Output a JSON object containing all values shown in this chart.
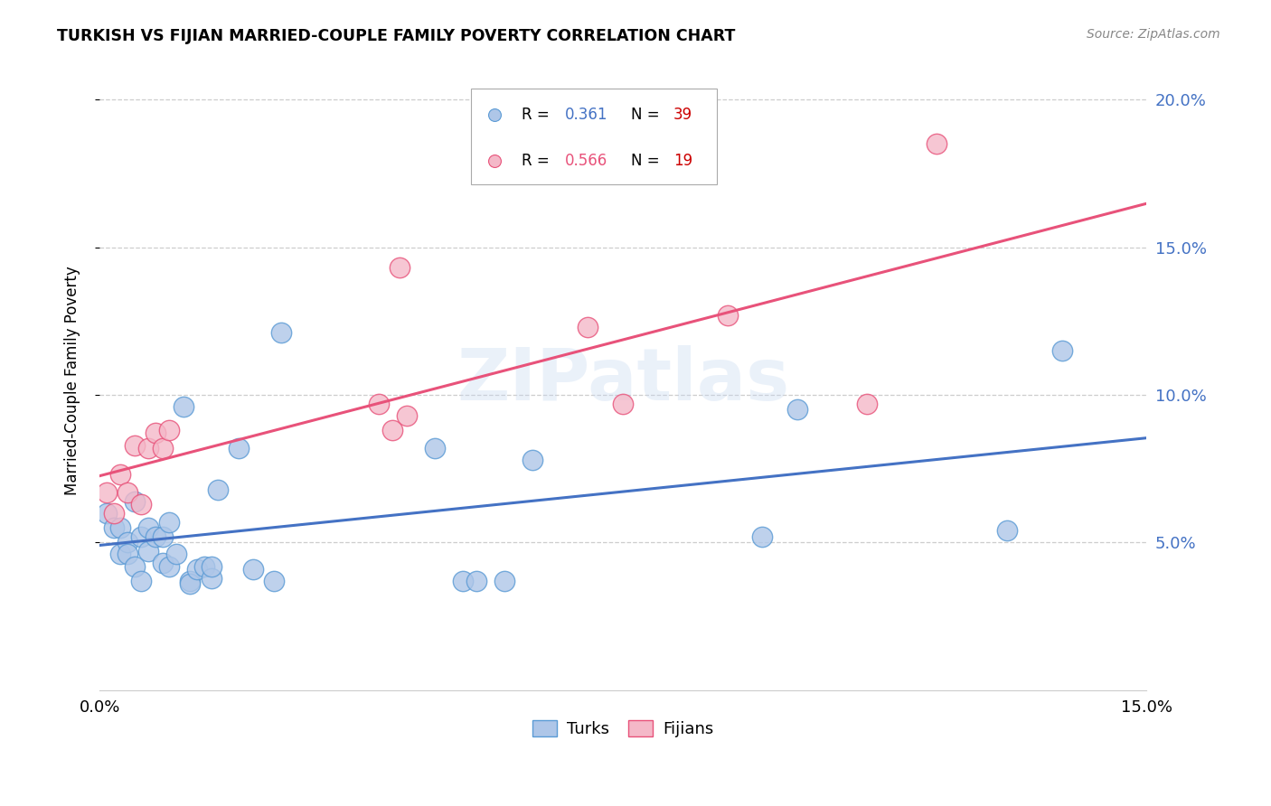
{
  "title": "TURKISH VS FIJIAN MARRIED-COUPLE FAMILY POVERTY CORRELATION CHART",
  "source": "Source: ZipAtlas.com",
  "ylabel": "Married-Couple Family Poverty",
  "xlim": [
    0.0,
    0.15
  ],
  "ylim": [
    0.0,
    0.21
  ],
  "turks_color": "#aec6e8",
  "turks_edge": "#5b9bd5",
  "fijians_color": "#f4b8c8",
  "fijians_edge": "#e8527a",
  "turks_line_color": "#4472c4",
  "fijians_line_color": "#e8527a",
  "r_turks": "0.361",
  "n_turks": "39",
  "r_fijians": "0.566",
  "n_fijians": "19",
  "turks_x": [
    0.001,
    0.002,
    0.003,
    0.003,
    0.004,
    0.004,
    0.005,
    0.005,
    0.006,
    0.006,
    0.007,
    0.007,
    0.008,
    0.009,
    0.009,
    0.01,
    0.01,
    0.011,
    0.012,
    0.013,
    0.013,
    0.014,
    0.015,
    0.016,
    0.016,
    0.017,
    0.02,
    0.022,
    0.025,
    0.026,
    0.048,
    0.052,
    0.054,
    0.058,
    0.062,
    0.095,
    0.1,
    0.13,
    0.138
  ],
  "turks_y": [
    0.06,
    0.055,
    0.055,
    0.046,
    0.05,
    0.046,
    0.064,
    0.042,
    0.052,
    0.037,
    0.055,
    0.047,
    0.052,
    0.052,
    0.043,
    0.057,
    0.042,
    0.046,
    0.096,
    0.037,
    0.036,
    0.041,
    0.042,
    0.038,
    0.042,
    0.068,
    0.082,
    0.041,
    0.037,
    0.121,
    0.082,
    0.037,
    0.037,
    0.037,
    0.078,
    0.052,
    0.095,
    0.054,
    0.115
  ],
  "fijians_x": [
    0.001,
    0.002,
    0.003,
    0.004,
    0.005,
    0.006,
    0.007,
    0.008,
    0.009,
    0.01,
    0.04,
    0.042,
    0.043,
    0.044,
    0.07,
    0.075,
    0.09,
    0.11,
    0.12
  ],
  "fijians_y": [
    0.067,
    0.06,
    0.073,
    0.067,
    0.083,
    0.063,
    0.082,
    0.087,
    0.082,
    0.088,
    0.097,
    0.088,
    0.143,
    0.093,
    0.123,
    0.097,
    0.127,
    0.097,
    0.185
  ]
}
